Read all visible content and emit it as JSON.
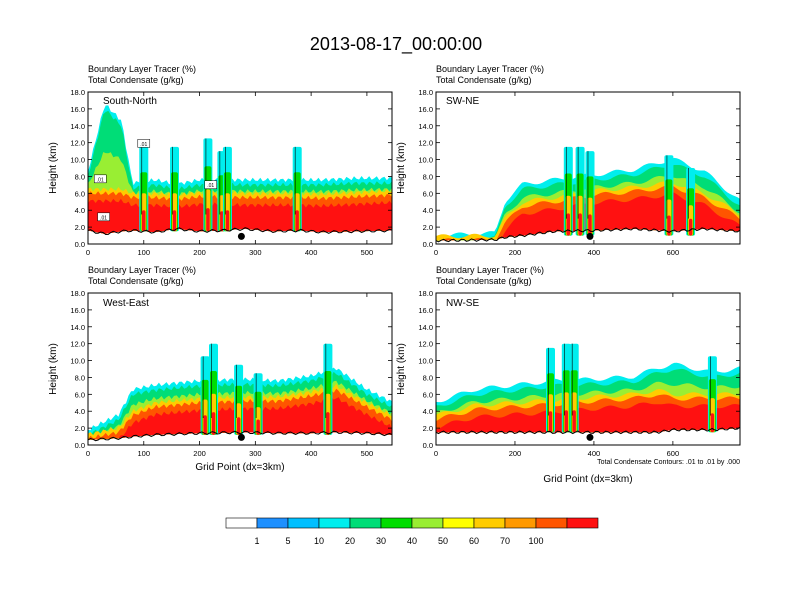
{
  "title": "2013-08-17_00:00:00",
  "panel_label_1": "Boundary Layer Tracer   (%)",
  "panel_label_2": "Total Condensate   (g/kg)",
  "y_axis_label": "Height (km)",
  "x_axis_label": "Grid Point (dx=3km)",
  "contour_note": "Total Condensate Contours: .01 to .01 by .000",
  "colors": {
    "bins": [
      "#ffffff",
      "#1e90ff",
      "#00bfff",
      "#00eeee",
      "#00dd77",
      "#00dd00",
      "#99ee33",
      "#ffff00",
      "#ffcc00",
      "#ff9900",
      "#ff5500",
      "#ff1111"
    ],
    "terrain": "#000000",
    "marker": "#000000"
  },
  "chart_data": [
    {
      "type": "heatmap",
      "id": "south-north",
      "cross_section": "South-North",
      "xlim": [
        0,
        545
      ],
      "ylim": [
        0,
        18
      ],
      "xticks": [
        0,
        100,
        200,
        300,
        400,
        500
      ],
      "yticks": [
        0,
        2,
        4,
        6,
        8,
        10,
        12,
        14,
        16,
        18
      ],
      "marker_x": 275,
      "contour_labels": [
        ".01",
        ".01",
        ".01",
        ".01"
      ],
      "profile": [
        [
          0,
          1.6,
          6,
          8
        ],
        [
          30,
          1.2,
          6,
          16
        ],
        [
          60,
          1.5,
          6,
          14
        ],
        [
          80,
          1.6,
          5.5,
          6.6
        ],
        [
          120,
          1.4,
          5.5,
          7
        ],
        [
          160,
          1.8,
          5.3,
          6.5
        ],
        [
          200,
          1.5,
          5.6,
          7
        ],
        [
          240,
          1.6,
          5.6,
          7
        ],
        [
          280,
          1.8,
          5.5,
          7
        ],
        [
          330,
          1.5,
          5.5,
          7
        ],
        [
          380,
          1.6,
          5.5,
          7
        ],
        [
          420,
          1.4,
          5.4,
          7
        ],
        [
          480,
          1.5,
          5.6,
          7.2
        ],
        [
          545,
          1.6,
          5.8,
          7.2
        ]
      ],
      "towers": [
        [
          100,
          1.5,
          11.5
        ],
        [
          155,
          1.5,
          11.5
        ],
        [
          215,
          1.5,
          12.5
        ],
        [
          240,
          1.5,
          11.0
        ],
        [
          250,
          1.5,
          11.5
        ],
        [
          375,
          1.5,
          11.5
        ]
      ]
    },
    {
      "type": "heatmap",
      "id": "sw-ne",
      "cross_section": "SW-NE",
      "xlim": [
        0,
        770
      ],
      "ylim": [
        0,
        18
      ],
      "xticks": [
        0,
        200,
        400,
        600
      ],
      "yticks": [
        0,
        2,
        4,
        6,
        8,
        10,
        12,
        14,
        16,
        18
      ],
      "marker_x": 390,
      "contour_labels": [],
      "profile": [
        [
          0,
          0.4,
          0.4,
          0.4
        ],
        [
          150,
          0.5,
          0.5,
          0.7
        ],
        [
          175,
          0.8,
          2.5,
          4.5
        ],
        [
          220,
          1.0,
          4.5,
          6.5
        ],
        [
          300,
          1.5,
          5.0,
          7.0
        ],
        [
          400,
          1.6,
          5.8,
          7.6
        ],
        [
          500,
          1.8,
          6.2,
          8.2
        ],
        [
          600,
          1.5,
          6.8,
          9.5
        ],
        [
          680,
          1.8,
          5.5,
          8.0
        ],
        [
          770,
          1.5,
          3.0,
          4.5
        ]
      ],
      "towers": [
        [
          335,
          1.0,
          11.5
        ],
        [
          365,
          1.0,
          11.5
        ],
        [
          390,
          1.0,
          11.0
        ],
        [
          590,
          1.0,
          10.5
        ],
        [
          645,
          1.0,
          9.0
        ]
      ]
    },
    {
      "type": "heatmap",
      "id": "west-east",
      "cross_section": "West-East",
      "xlim": [
        0,
        545
      ],
      "ylim": [
        0,
        18
      ],
      "xticks": [
        0,
        100,
        200,
        300,
        400,
        500
      ],
      "yticks": [
        0,
        2,
        4,
        6,
        8,
        10,
        12,
        14,
        16,
        18
      ],
      "marker_x": 275,
      "contour_labels": [],
      "profile": [
        [
          0,
          0.6,
          0.8,
          1.2
        ],
        [
          55,
          0.8,
          1.5,
          3.0
        ],
        [
          80,
          1.0,
          3.5,
          6.0
        ],
        [
          120,
          1.2,
          4.5,
          6.5
        ],
        [
          200,
          1.4,
          5.0,
          7.0
        ],
        [
          280,
          1.5,
          5.2,
          7.2
        ],
        [
          340,
          1.4,
          5.2,
          7.0
        ],
        [
          400,
          1.4,
          5.8,
          7.6
        ],
        [
          445,
          1.5,
          6.5,
          8.5
        ],
        [
          500,
          1.4,
          4.5,
          6.0
        ],
        [
          545,
          1.2,
          3.0,
          4.5
        ]
      ],
      "towers": [
        [
          210,
          1.2,
          10.5
        ],
        [
          225,
          1.2,
          12.0
        ],
        [
          270,
          1.2,
          9.5
        ],
        [
          305,
          1.2,
          8.5
        ],
        [
          430,
          1.2,
          12.0
        ]
      ]
    },
    {
      "type": "heatmap",
      "id": "nw-se",
      "cross_section": "NW-SE",
      "xlim": [
        0,
        770
      ],
      "ylim": [
        0,
        18
      ],
      "xticks": [
        0,
        200,
        400,
        600
      ],
      "yticks": [
        0,
        2,
        4,
        6,
        8,
        10,
        12,
        14,
        16,
        18
      ],
      "marker_x": 390,
      "contour_labels": [],
      "profile": [
        [
          0,
          1.5,
          3.0,
          4.5
        ],
        [
          100,
          1.5,
          4.2,
          6.0
        ],
        [
          200,
          1.5,
          4.5,
          6.5
        ],
        [
          300,
          1.5,
          4.8,
          7.0
        ],
        [
          400,
          1.5,
          5.2,
          7.2
        ],
        [
          500,
          1.5,
          5.5,
          7.5
        ],
        [
          560,
          1.5,
          6.0,
          8.5
        ],
        [
          600,
          1.8,
          5.5,
          9.0
        ],
        [
          700,
          1.8,
          5.5,
          8.0
        ],
        [
          770,
          2.0,
          5.5,
          8.5
        ]
      ],
      "towers": [
        [
          290,
          1.5,
          11.5
        ],
        [
          330,
          1.5,
          12.0
        ],
        [
          350,
          1.5,
          12.0
        ],
        [
          700,
          1.5,
          10.5
        ]
      ]
    }
  ],
  "colorbar": {
    "labels": [
      "1",
      "5",
      "10",
      "20",
      "30",
      "40",
      "50",
      "60",
      "70",
      "100"
    ]
  }
}
